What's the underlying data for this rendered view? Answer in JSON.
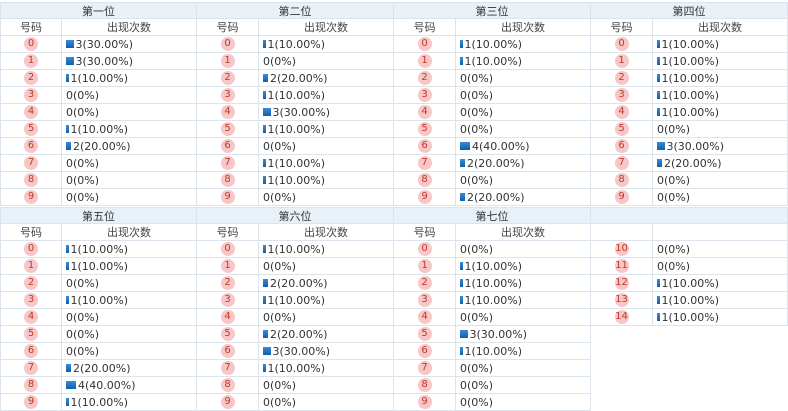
{
  "panels": [
    {
      "title": "第一位",
      "columns": [
        "号码",
        "出现次数"
      ],
      "rows": [
        {
          "number": 0,
          "count": 3,
          "label": "3(30.00%)"
        },
        {
          "number": 1,
          "count": 3,
          "label": "3(30.00%)"
        },
        {
          "number": 2,
          "count": 1,
          "label": "1(10.00%)"
        },
        {
          "number": 3,
          "count": 0,
          "label": "0(0%)"
        },
        {
          "number": 4,
          "count": 0,
          "label": "0(0%)"
        },
        {
          "number": 5,
          "count": 1,
          "label": "1(10.00%)"
        },
        {
          "number": 6,
          "count": 2,
          "label": "2(20.00%)"
        },
        {
          "number": 7,
          "count": 0,
          "label": "0(0%)"
        },
        {
          "number": 8,
          "count": 0,
          "label": "0(0%)"
        },
        {
          "number": 9,
          "count": 0,
          "label": "0(0%)"
        }
      ]
    },
    {
      "title": "第二位",
      "columns": [
        "号码",
        "出现次数"
      ],
      "rows": [
        {
          "number": 0,
          "count": 1,
          "label": "1(10.00%)"
        },
        {
          "number": 1,
          "count": 0,
          "label": "0(0%)"
        },
        {
          "number": 2,
          "count": 2,
          "label": "2(20.00%)"
        },
        {
          "number": 3,
          "count": 1,
          "label": "1(10.00%)"
        },
        {
          "number": 4,
          "count": 3,
          "label": "3(30.00%)"
        },
        {
          "number": 5,
          "count": 1,
          "label": "1(10.00%)"
        },
        {
          "number": 6,
          "count": 0,
          "label": "0(0%)"
        },
        {
          "number": 7,
          "count": 1,
          "label": "1(10.00%)"
        },
        {
          "number": 8,
          "count": 1,
          "label": "1(10.00%)"
        },
        {
          "number": 9,
          "count": 0,
          "label": "0(0%)"
        }
      ]
    },
    {
      "title": "第三位",
      "columns": [
        "号码",
        "出现次数"
      ],
      "rows": [
        {
          "number": 0,
          "count": 1,
          "label": "1(10.00%)"
        },
        {
          "number": 1,
          "count": 1,
          "label": "1(10.00%)"
        },
        {
          "number": 2,
          "count": 0,
          "label": "0(0%)"
        },
        {
          "number": 3,
          "count": 0,
          "label": "0(0%)"
        },
        {
          "number": 4,
          "count": 0,
          "label": "0(0%)"
        },
        {
          "number": 5,
          "count": 0,
          "label": "0(0%)"
        },
        {
          "number": 6,
          "count": 4,
          "label": "4(40.00%)"
        },
        {
          "number": 7,
          "count": 2,
          "label": "2(20.00%)"
        },
        {
          "number": 8,
          "count": 0,
          "label": "0(0%)"
        },
        {
          "number": 9,
          "count": 2,
          "label": "2(20.00%)"
        }
      ]
    },
    {
      "title": "第四位",
      "columns": [
        "号码",
        "出现次数"
      ],
      "rows": [
        {
          "number": 0,
          "count": 1,
          "label": "1(10.00%)"
        },
        {
          "number": 1,
          "count": 1,
          "label": "1(10.00%)"
        },
        {
          "number": 2,
          "count": 1,
          "label": "1(10.00%)"
        },
        {
          "number": 3,
          "count": 1,
          "label": "1(10.00%)"
        },
        {
          "number": 4,
          "count": 1,
          "label": "1(10.00%)"
        },
        {
          "number": 5,
          "count": 0,
          "label": "0(0%)"
        },
        {
          "number": 6,
          "count": 3,
          "label": "3(30.00%)"
        },
        {
          "number": 7,
          "count": 2,
          "label": "2(20.00%)"
        },
        {
          "number": 8,
          "count": 0,
          "label": "0(0%)"
        },
        {
          "number": 9,
          "count": 0,
          "label": "0(0%)"
        }
      ]
    },
    {
      "title": "第五位",
      "columns": [
        "号码",
        "出现次数"
      ],
      "rows": [
        {
          "number": 0,
          "count": 1,
          "label": "1(10.00%)"
        },
        {
          "number": 1,
          "count": 1,
          "label": "1(10.00%)"
        },
        {
          "number": 2,
          "count": 0,
          "label": "0(0%)"
        },
        {
          "number": 3,
          "count": 1,
          "label": "1(10.00%)"
        },
        {
          "number": 4,
          "count": 0,
          "label": "0(0%)"
        },
        {
          "number": 5,
          "count": 0,
          "label": "0(0%)"
        },
        {
          "number": 6,
          "count": 0,
          "label": "0(0%)"
        },
        {
          "number": 7,
          "count": 2,
          "label": "2(20.00%)"
        },
        {
          "number": 8,
          "count": 4,
          "label": "4(40.00%)"
        },
        {
          "number": 9,
          "count": 1,
          "label": "1(10.00%)"
        }
      ]
    },
    {
      "title": "第六位",
      "columns": [
        "号码",
        "出现次数"
      ],
      "rows": [
        {
          "number": 0,
          "count": 1,
          "label": "1(10.00%)"
        },
        {
          "number": 1,
          "count": 0,
          "label": "0(0%)"
        },
        {
          "number": 2,
          "count": 2,
          "label": "2(20.00%)"
        },
        {
          "number": 3,
          "count": 1,
          "label": "1(10.00%)"
        },
        {
          "number": 4,
          "count": 0,
          "label": "0(0%)"
        },
        {
          "number": 5,
          "count": 2,
          "label": "2(20.00%)"
        },
        {
          "number": 6,
          "count": 3,
          "label": "3(30.00%)"
        },
        {
          "number": 7,
          "count": 1,
          "label": "1(10.00%)"
        },
        {
          "number": 8,
          "count": 0,
          "label": "0(0%)"
        },
        {
          "number": 9,
          "count": 0,
          "label": "0(0%)"
        }
      ]
    },
    {
      "title": "第七位",
      "columns": [
        "号码",
        "出现次数"
      ],
      "rows": [
        {
          "number": 0,
          "count": 0,
          "label": "0(0%)"
        },
        {
          "number": 1,
          "count": 1,
          "label": "1(10.00%)"
        },
        {
          "number": 2,
          "count": 1,
          "label": "1(10.00%)"
        },
        {
          "number": 3,
          "count": 1,
          "label": "1(10.00%)"
        },
        {
          "number": 4,
          "count": 0,
          "label": "0(0%)"
        },
        {
          "number": 5,
          "count": 3,
          "label": "3(30.00%)"
        },
        {
          "number": 6,
          "count": 1,
          "label": "1(10.00%)"
        },
        {
          "number": 7,
          "count": 0,
          "label": "0(0%)"
        },
        {
          "number": 8,
          "count": 0,
          "label": "0(0%)"
        },
        {
          "number": 9,
          "count": 0,
          "label": "0(0%)"
        }
      ]
    },
    {
      "rows": [
        {
          "number": 10,
          "count": 0,
          "label": "0(0%)"
        },
        {
          "number": 11,
          "count": 0,
          "label": "0(0%)"
        },
        {
          "number": 12,
          "count": 1,
          "label": "1(10.00%)"
        },
        {
          "number": 13,
          "count": 1,
          "label": "1(10.00%)"
        },
        {
          "number": 14,
          "count": 1,
          "label": "1(10.00%)"
        }
      ]
    }
  ]
}
